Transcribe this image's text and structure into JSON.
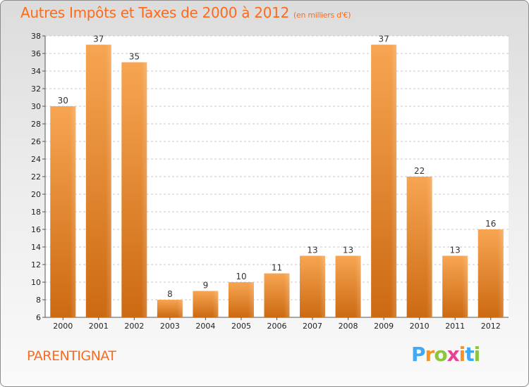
{
  "chart_data": {
    "type": "bar",
    "title": "Autres Impôts et Taxes de 2000 à 2012",
    "subtitle": "(en milliers d'€)",
    "categories": [
      "2000",
      "2001",
      "2002",
      "2003",
      "2004",
      "2005",
      "2006",
      "2007",
      "2008",
      "2009",
      "2010",
      "2011",
      "2012"
    ],
    "values": [
      30,
      37,
      35,
      8,
      9,
      10,
      11,
      13,
      13,
      37,
      22,
      13,
      16
    ],
    "ylim": [
      6,
      38
    ],
    "yticks": [
      6,
      8,
      10,
      12,
      14,
      16,
      18,
      20,
      22,
      24,
      26,
      28,
      30,
      32,
      34,
      36,
      38
    ],
    "grid": "horizontal dashed",
    "bar_color": "#f0922e",
    "xlabel": "",
    "ylabel": ""
  },
  "commune": "PARENTIGNAT",
  "logo": {
    "letters": [
      "P",
      "r",
      "o",
      "x",
      "i",
      "t",
      "i"
    ],
    "colors": [
      "#3fa9f5",
      "#f7931e",
      "#8cc63f",
      "#e84393",
      "#f7931e",
      "#3fa9f5",
      "#8cc63f"
    ]
  }
}
